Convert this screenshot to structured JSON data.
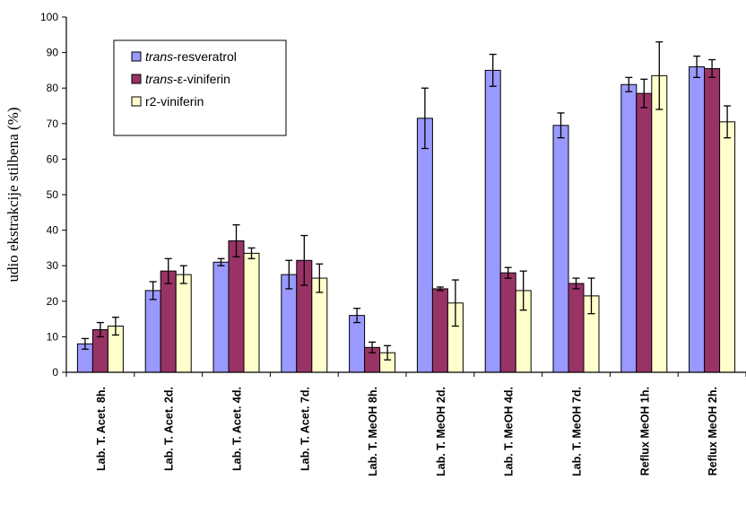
{
  "chart_data": {
    "type": "bar",
    "ylabel": "udio ekstrakcije stilbena (%)",
    "xlabel": "",
    "ylim": [
      0,
      100
    ],
    "yticks": [
      0,
      10,
      20,
      30,
      40,
      50,
      60,
      70,
      80,
      90,
      100
    ],
    "grid": false,
    "legend_position": "top-left",
    "categories": [
      "Lab. T. Acet. 8h.",
      "Lab. T. Acet. 2d.",
      "Lab. T. Acet. 4d.",
      "Lab. T. Acet. 7d.",
      "Lab. T. MeOH 8h.",
      "Lab. T. MeOH 2d.",
      "Lab. T. MeOH 4d.",
      "Lab. T. MeOH 7d.",
      "Reflux MeOH 1h.",
      "Reflux MeOH 2h."
    ],
    "series": [
      {
        "name_prefix": "trans",
        "name_suffix": "-resveratrol",
        "color": "#9999ff",
        "values": [
          8,
          23,
          31,
          27.5,
          16,
          71.5,
          85,
          69.5,
          81,
          86
        ],
        "errors": [
          1.5,
          2.5,
          1,
          4,
          2,
          8.5,
          4.5,
          3.5,
          2,
          3
        ]
      },
      {
        "name_prefix": "trans",
        "name_suffix": "-ε-viniferin",
        "color": "#993366",
        "values": [
          12,
          28.5,
          37,
          31.5,
          7,
          23.5,
          28,
          25,
          78.5,
          85.5
        ],
        "errors": [
          2,
          3.5,
          4.5,
          7,
          1.5,
          0.5,
          1.5,
          1.5,
          4,
          2.5
        ]
      },
      {
        "name_prefix": "",
        "name_suffix": "r2-viniferin",
        "color": "#ffffcc",
        "values": [
          13,
          27.5,
          33.5,
          26.5,
          5.5,
          19.5,
          23,
          21.5,
          83.5,
          70.5
        ],
        "errors": [
          2.5,
          2.5,
          1.5,
          4,
          2,
          6.5,
          5.5,
          5,
          9.5,
          4.5
        ]
      }
    ]
  }
}
